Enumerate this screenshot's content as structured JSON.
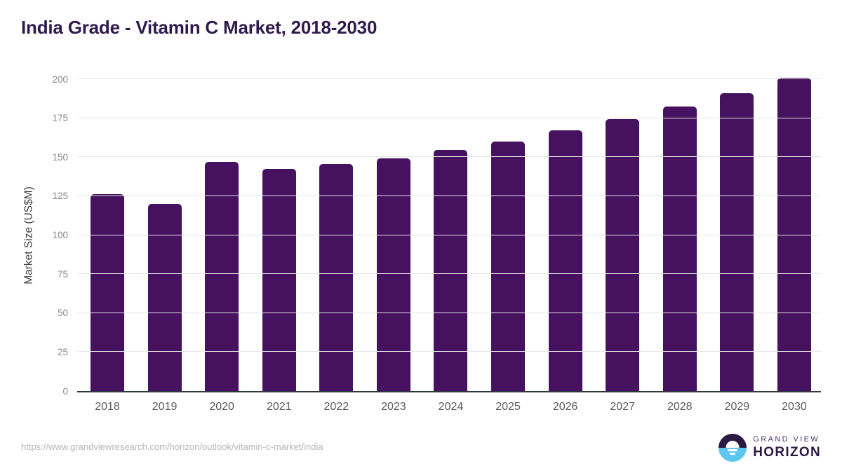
{
  "page": {
    "title": "India Grade - Vitamin C Market, 2018-2030"
  },
  "chart_data": {
    "type": "bar",
    "title": "India Grade - Vitamin C Market, 2018-2030",
    "categories": [
      "2018",
      "2019",
      "2020",
      "2021",
      "2022",
      "2023",
      "2024",
      "2025",
      "2026",
      "2027",
      "2028",
      "2029",
      "2030"
    ],
    "values": [
      126.4,
      120.1,
      146.8,
      142.7,
      145.7,
      149.2,
      154.4,
      160.2,
      167.0,
      174.4,
      182.3,
      190.9,
      200.8
    ],
    "xlabel": "",
    "ylabel": "Market Size (US$M)",
    "ylim": [
      0,
      200
    ],
    "yticks": [
      0,
      25,
      50,
      75,
      100,
      125,
      150,
      175,
      200
    ],
    "grid": true,
    "legend": "none",
    "bar_color": "#46115e"
  },
  "footer": {
    "source_url": "https://www.grandviewresearch.com/horizon/outlook/vitamin-c-market/india",
    "logo": {
      "brand_top": "GRAND VIEW",
      "brand_bottom": "HORIZON"
    }
  },
  "colors": {
    "bar": "#46115e",
    "title_text": "#2f1a4d",
    "gridline": "#e7e7e7",
    "axis_line": "#31383d",
    "y_tick_text": "#8a8a8a",
    "x_tick_text": "#5a5a5a",
    "axis_label_text": "#404040",
    "url_text": "#b6b6b6",
    "logo_blue": "#5ec7f0",
    "logo_dark": "#2b1b43",
    "logo_text": "#2d1845"
  }
}
